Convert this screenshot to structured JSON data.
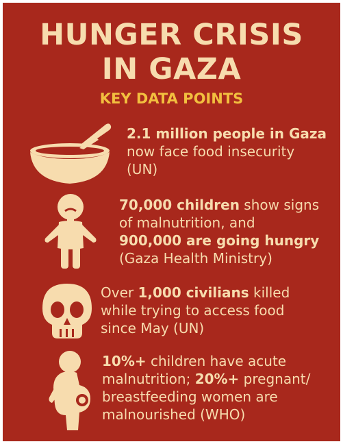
{
  "title_line1": "HUNGER CRISIS",
  "title_line2": "IN GAZA",
  "subtitle": "KEY DATA POINTS",
  "colors": {
    "background": "#a8281c",
    "text": "#f7dcae",
    "accent": "#f2bf3f"
  },
  "icons": [
    "bowl-icon",
    "child-icon",
    "skull-icon",
    "pregnant-woman-icon"
  ],
  "facts": [
    {
      "bold1": "2.1 million people in Gaza",
      "text1": "now face food insecurity",
      "text2": "(UN)"
    },
    {
      "bold1": "70,000 children",
      "text1": " show signs",
      "text2": "of malnutrition, and",
      "bold2": "900,000 are going hungry",
      "text3": "(Gaza Health Ministry)"
    },
    {
      "text0": "Over ",
      "bold1": "1,000 civilians",
      "text1": " killed",
      "text2": "while trying to access food",
      "text3": "since May (UN)"
    },
    {
      "bold1": "10%+",
      "text1": " children have acute",
      "text2": "malnutrition; ",
      "bold2": "20%+",
      "text3": " pregnant/",
      "text4": "breastfeeding women are",
      "text5": "malnourished (WHO)"
    }
  ]
}
